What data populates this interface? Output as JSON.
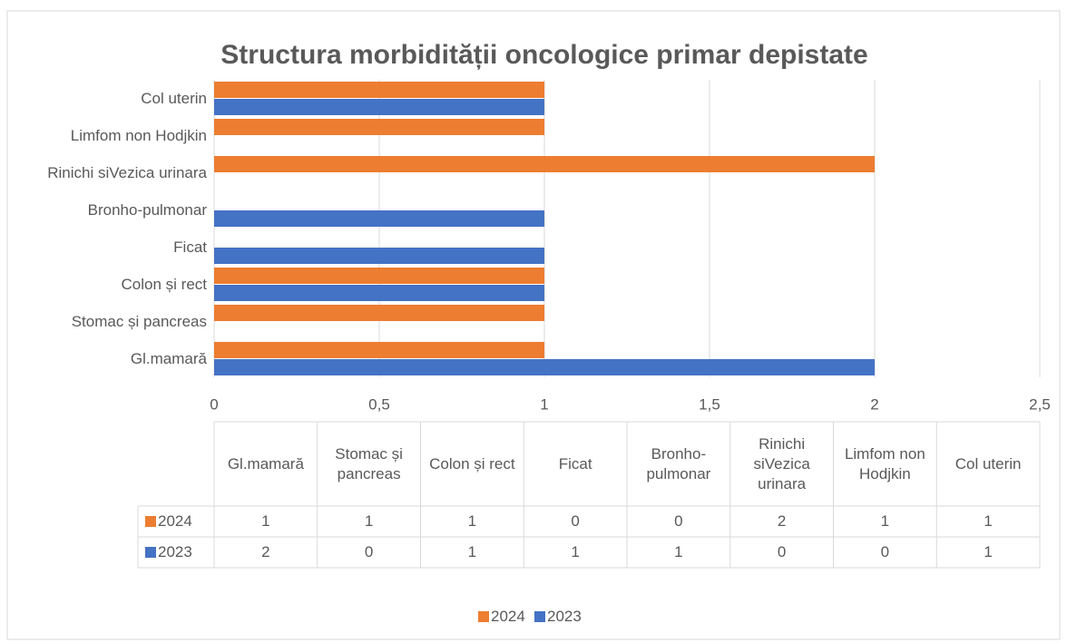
{
  "chart_data": {
    "type": "bar",
    "orientation": "horizontal",
    "title": "Structura morbidității oncologice primar depistate",
    "categories": [
      "Gl.mamară",
      "Stomac și pancreas",
      "Colon și rect",
      "Ficat",
      "Bronho-pulmonar",
      "Rinichi siVezica urinara",
      "Limfom non Hodjkin",
      "Col uterin"
    ],
    "series": [
      {
        "name": "2024",
        "color": "#ed7d31",
        "values": [
          1,
          1,
          1,
          0,
          0,
          2,
          1,
          1
        ]
      },
      {
        "name": "2023",
        "color": "#4472c4",
        "values": [
          2,
          0,
          1,
          1,
          1,
          0,
          0,
          1
        ]
      }
    ],
    "xlim": [
      0,
      2.5
    ],
    "xticks": [
      0,
      {
        "value": 0.5,
        "label": "0,5"
      },
      1,
      {
        "value": 1.5,
        "label": "1,5"
      },
      2,
      {
        "value": 2.5,
        "label": "2,5"
      }
    ],
    "grid": true,
    "legend": "bottom",
    "data_table": true
  }
}
